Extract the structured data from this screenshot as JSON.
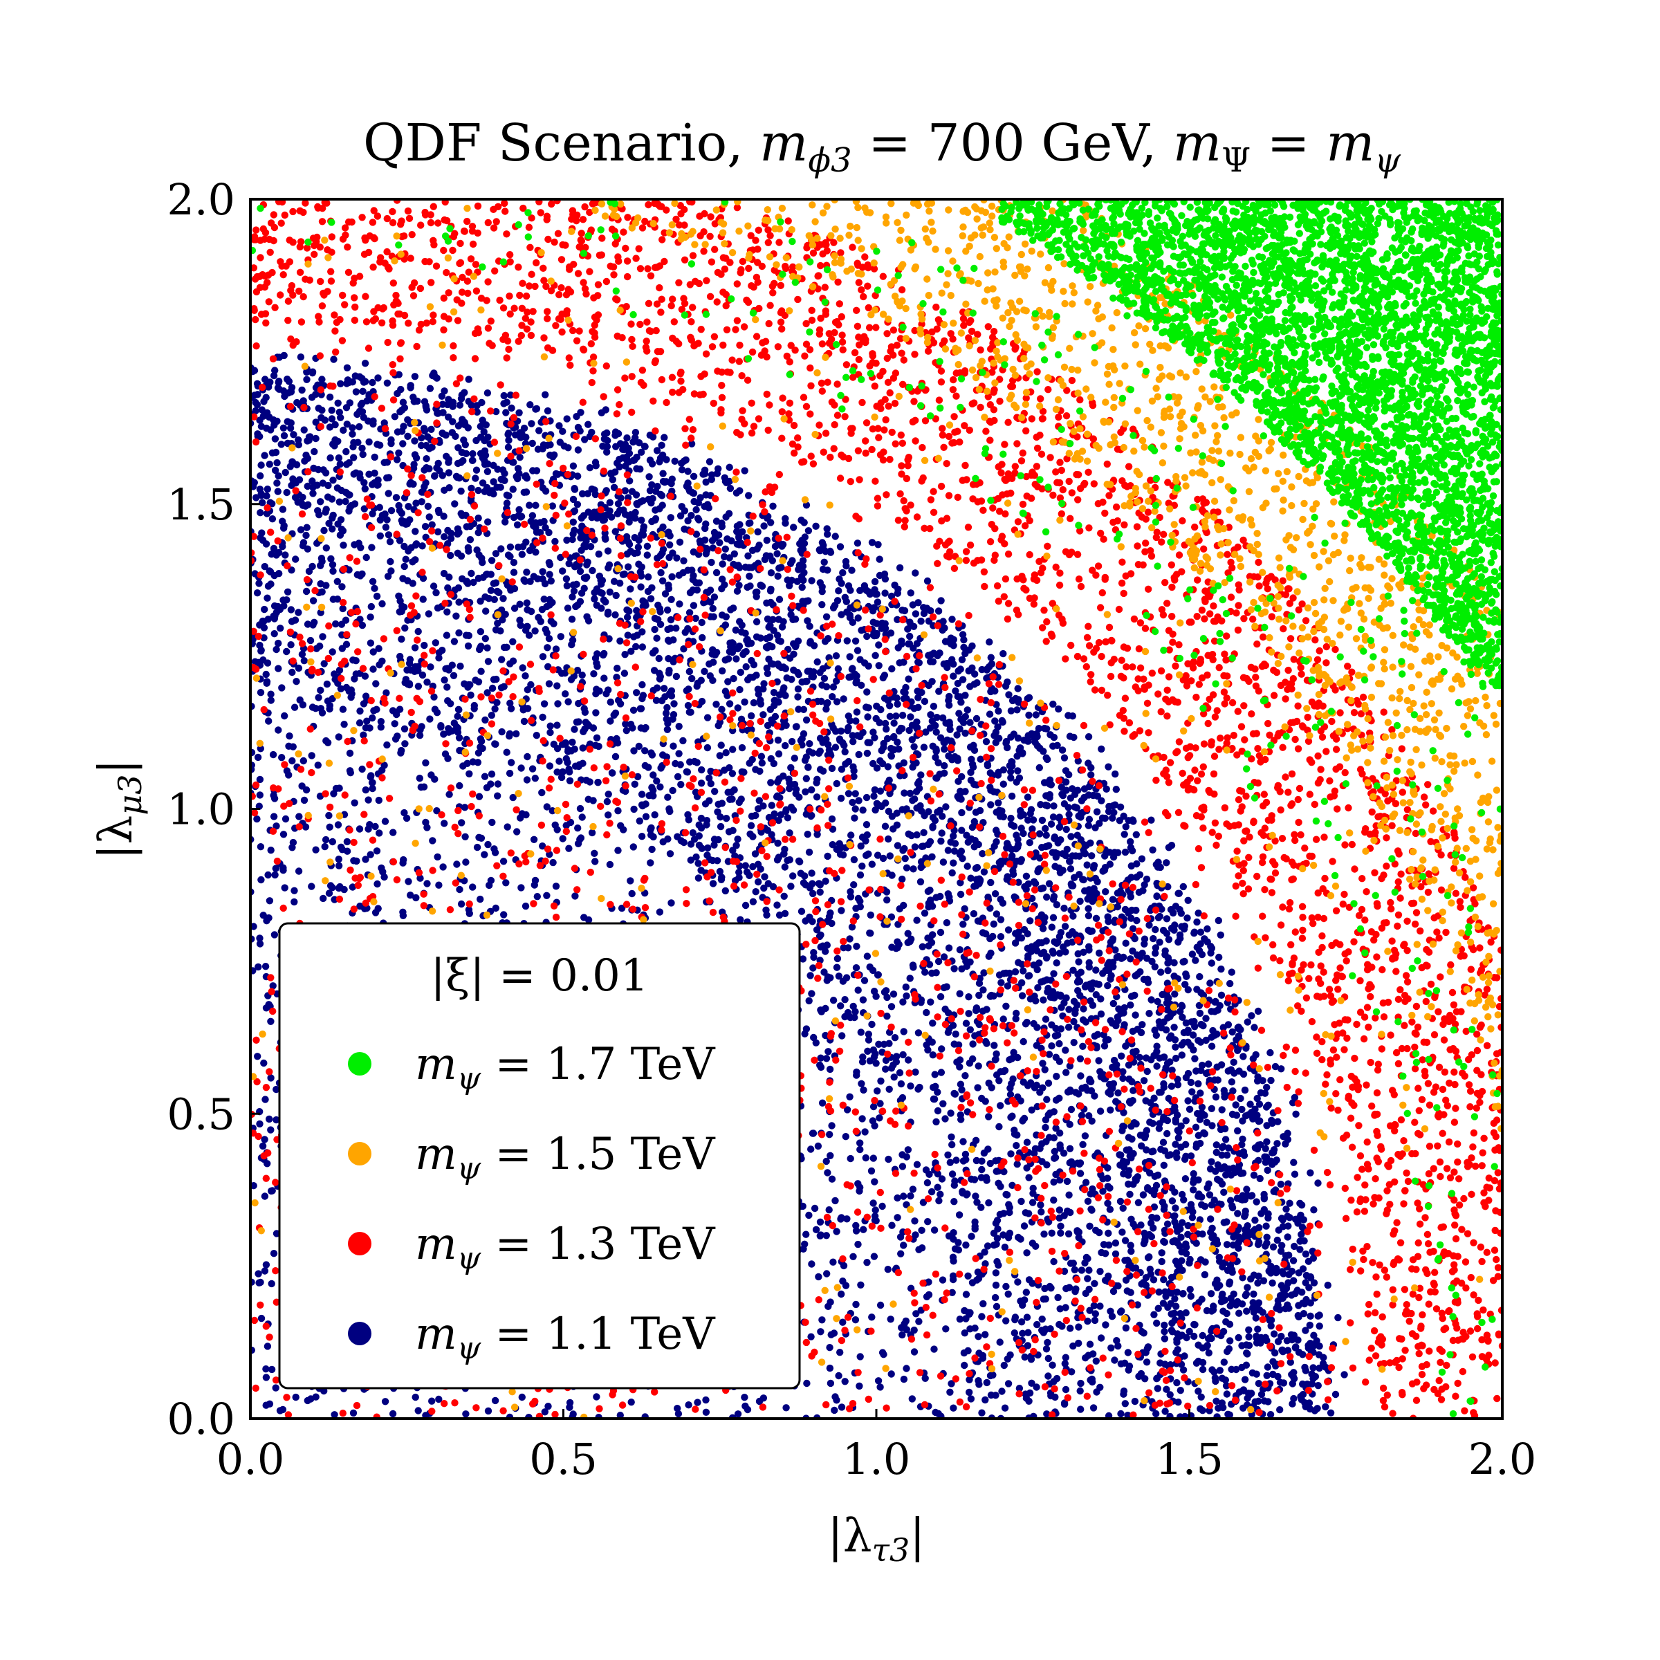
{
  "chart_data": {
    "type": "scatter",
    "title_parts": [
      "QDF Scenario, ",
      "m",
      "ϕ3",
      " = 700 GeV, ",
      "m",
      "Ψ",
      " = ",
      "m",
      "ψ"
    ],
    "xlabel_parts": [
      "|λ",
      "τ3",
      "|"
    ],
    "ylabel_parts": [
      "|λ",
      "μ3",
      "|"
    ],
    "xlim": [
      0.0,
      2.0
    ],
    "ylim": [
      0.0,
      2.0
    ],
    "xticks": [
      "0.0",
      "0.5",
      "1.0",
      "1.5",
      "2.0"
    ],
    "yticks": [
      "0.0",
      "0.5",
      "1.0",
      "1.5",
      "2.0"
    ],
    "xtick_values": [
      0.0,
      0.5,
      1.0,
      1.5,
      2.0
    ],
    "ytick_values": [
      0.0,
      0.5,
      1.0,
      1.5,
      2.0
    ],
    "legend": {
      "title": "|ξ| = 0.01",
      "location": "lower-left",
      "entries": [
        {
          "m": "m",
          "sub": "ψ",
          "eq": " = 1.7 TeV",
          "color": "#00ee00"
        },
        {
          "m": "m",
          "sub": "ψ",
          "eq": " = 1.5 TeV",
          "color": "#ffa500"
        },
        {
          "m": "m",
          "sub": "ψ",
          "eq": " = 1.3 TeV",
          "color": "#ff0000"
        },
        {
          "m": "m",
          "sub": "ψ",
          "eq": " = 1.1 TeV",
          "color": "#000080"
        }
      ]
    },
    "series": [
      {
        "name": "m_ψ = 1.7 TeV",
        "color": "#00ee00",
        "region": "|λ| ≥ 2.30, dense band plus sparse scatter in orange/red bands",
        "r_min": 2.3,
        "r_max": 2.83,
        "approx_points": 4200
      },
      {
        "name": "m_ψ = 1.5 TeV",
        "color": "#ffa500",
        "region": "2.05 ≤ |λ| ≤ 2.40",
        "r_min": 2.05,
        "r_max": 2.4,
        "approx_points": 3500
      },
      {
        "name": "m_ψ = 1.3 TeV",
        "color": "#ff0000",
        "region": "1.80 ≤ |λ| ≤ 2.15, plus scattered points inside",
        "r_min": 1.8,
        "r_max": 2.15,
        "approx_points": 4000
      },
      {
        "name": "m_ψ = 1.1 TeV",
        "color": "#000080",
        "region": "|λ| ≤ 1.75, denser near outer edge",
        "r_min": 0.0,
        "r_max": 1.75,
        "approx_points": 9000
      }
    ]
  }
}
